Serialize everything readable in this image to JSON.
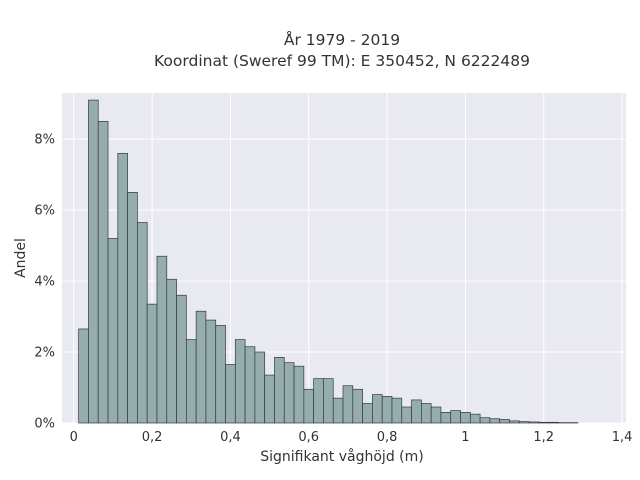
{
  "chart_data": {
    "type": "bar",
    "title_lines": [
      "År 1979 - 2019",
      "Koordinat (Sweref 99 TM): E 350452, N 6222489"
    ],
    "xlabel": "Signifikant våghöjd (m)",
    "ylabel": "Andel",
    "bin_width": 0.025,
    "bin_start": 0.0125,
    "values": [
      2.65,
      9.1,
      8.5,
      5.2,
      7.6,
      6.5,
      5.65,
      3.35,
      4.7,
      4.05,
      3.6,
      2.35,
      3.15,
      2.9,
      2.75,
      1.65,
      2.35,
      2.15,
      2.0,
      1.35,
      1.85,
      1.7,
      1.6,
      0.95,
      1.25,
      1.25,
      0.7,
      1.05,
      0.95,
      0.55,
      0.8,
      0.75,
      0.7,
      0.45,
      0.65,
      0.55,
      0.45,
      0.3,
      0.35,
      0.3,
      0.25,
      0.15,
      0.12,
      0.1,
      0.06,
      0.04,
      0.03,
      0.02,
      0.02,
      0.01,
      0.01
    ],
    "xlim": [
      -0.03,
      1.41
    ],
    "ylim": [
      0,
      9.3
    ],
    "x_ticks": [
      0,
      0.2,
      0.4,
      0.6,
      0.8,
      1.0,
      1.2,
      1.4
    ],
    "x_tick_labels": [
      "0",
      "0,2",
      "0,4",
      "0,6",
      "0,8",
      "1",
      "1,2",
      "1,4"
    ],
    "y_ticks": [
      0,
      2,
      4,
      6,
      8
    ],
    "y_tick_labels": [
      "0%",
      "2%",
      "4%",
      "6%",
      "8%"
    ],
    "grid": true,
    "colors": {
      "bar_fill": "#95adad",
      "bar_stroke": "#333b3b",
      "plot_background": "#e9e9f1",
      "grid": "#ffffff",
      "text": "#333333"
    }
  }
}
